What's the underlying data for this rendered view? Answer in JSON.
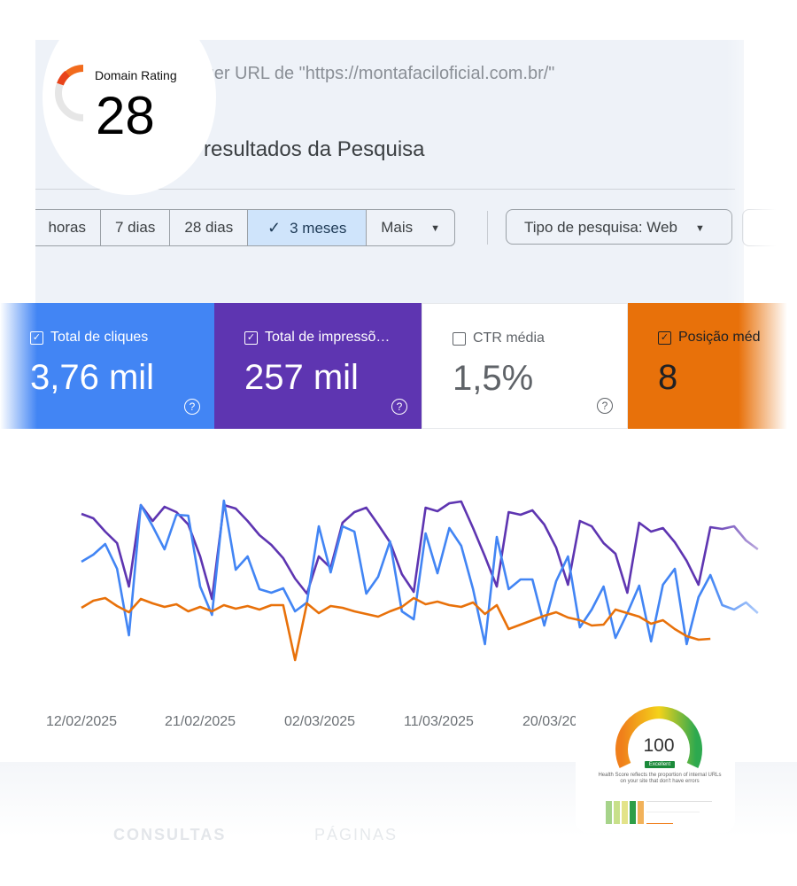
{
  "domain_rating": {
    "label": "Domain Rating",
    "value": "28",
    "fraction": 0.28
  },
  "url_bar": {
    "text": "lquer URL de \"https://montafaciloficial.com.br/\""
  },
  "page_heading": "resultados da Pesquisa",
  "date_filters": [
    {
      "label": "horas",
      "active": false
    },
    {
      "label": "7 dias",
      "active": false
    },
    {
      "label": "28 dias",
      "active": false
    },
    {
      "label": "3 meses",
      "active": true
    },
    {
      "label": "Mais",
      "active": false
    }
  ],
  "search_type": "Tipo de pesquisa: Web",
  "metrics": [
    {
      "label": "Total de cliques",
      "value": "3,76 mil",
      "checked": true,
      "color": "#4285f4"
    },
    {
      "label": "Total de impressõ…",
      "value": "257 mil",
      "checked": true,
      "color": "#5e35b1"
    },
    {
      "label": "CTR média",
      "value": "1,5%",
      "checked": false,
      "color": "#ffffff"
    },
    {
      "label": "Posição méd",
      "value": "8",
      "checked": true,
      "color": "#e8710a"
    }
  ],
  "help_glyph": "?",
  "check_glyph": "✓",
  "caret_glyph": "▼",
  "chart_data": {
    "type": "line",
    "x_labels": [
      "12/02/2025",
      "21/02/2025",
      "02/03/2025",
      "11/03/2025",
      "20/03/20"
    ],
    "y_axis_visible": false,
    "series": [
      {
        "color": "#5e35b1",
        "values": [
          580,
          585,
          600,
          613,
          662,
          570,
          588,
          572,
          578,
          592,
          628,
          676,
          570,
          574,
          588,
          604,
          615,
          630,
          653,
          670,
          628,
          641,
          590,
          578,
          573,
          592,
          612,
          648,
          668,
          573,
          577,
          568,
          566,
          596,
          628,
          662,
          578,
          581,
          576,
          592,
          618,
          660,
          588,
          594,
          613,
          625,
          669,
          590,
          600,
          596,
          612,
          633,
          660,
          595,
          597,
          594,
          610,
          620
        ]
      },
      {
        "color": "#4285f4",
        "values": [
          634,
          626,
          614,
          642,
          717,
          570,
          594,
          620,
          581,
          582,
          662,
          694,
          565,
          643,
          628,
          665,
          669,
          664,
          690,
          680,
          594,
          646,
          594,
          600,
          670,
          651,
          611,
          690,
          699,
          602,
          647,
          596,
          616,
          665,
          727,
          606,
          665,
          654,
          654,
          706,
          656,
          628,
          708,
          688,
          662,
          720,
          692,
          661,
          724,
          660,
          642,
          727,
          674,
          649,
          683,
          688,
          680,
          692
        ]
      },
      {
        "color": "#e8710a",
        "values": [
          686,
          678,
          675,
          684,
          691,
          676,
          681,
          685,
          682,
          690,
          685,
          690,
          683,
          687,
          684,
          688,
          683,
          683,
          745,
          681,
          692,
          684,
          686,
          690,
          693,
          696,
          690,
          685,
          675,
          682,
          679,
          683,
          685,
          680,
          693,
          683,
          710,
          705,
          700,
          695,
          691,
          697,
          700,
          706,
          705,
          688,
          692,
          696,
          704,
          700,
          710,
          718,
          722,
          721
        ]
      }
    ]
  },
  "health_score": {
    "value": "100",
    "badge": "Excellent",
    "description": "Health Score reflects the proportion of internal URLs on your site that don't have errors",
    "fraction": 1.0
  },
  "ghost_labels": [
    "CONSULTAS",
    "PÁGINAS"
  ]
}
